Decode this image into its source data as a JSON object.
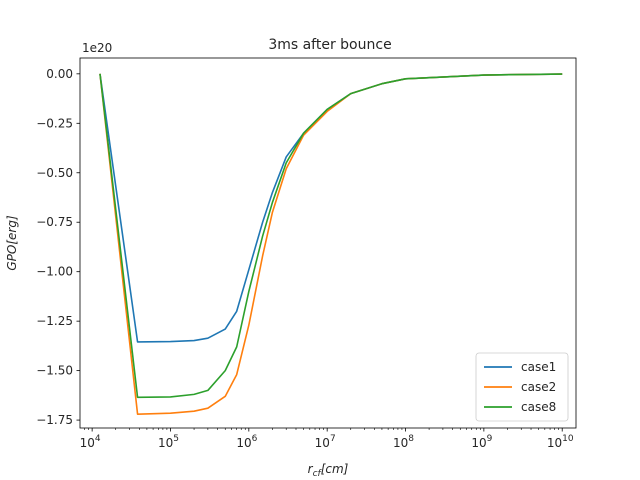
{
  "chart_data": {
    "type": "line",
    "title": "3ms after bounce",
    "xlabel": "r_cf[cm]",
    "ylabel": "GPO[erg]",
    "x_scale": "log",
    "y_offset_label": "1e20",
    "xlim": [
      7000,
      15000000000
    ],
    "ylim": [
      -1.79,
      0.08
    ],
    "x_ticks": [
      {
        "value": 10000,
        "base": "10",
        "exp": "4"
      },
      {
        "value": 100000,
        "base": "10",
        "exp": "5"
      },
      {
        "value": 1000000,
        "base": "10",
        "exp": "6"
      },
      {
        "value": 10000000,
        "base": "10",
        "exp": "7"
      },
      {
        "value": 100000000,
        "base": "10",
        "exp": "8"
      },
      {
        "value": 1000000000,
        "base": "10",
        "exp": "9"
      },
      {
        "value": 10000000000,
        "base": "10",
        "exp": "10"
      }
    ],
    "y_ticks": [
      {
        "value": 0.0,
        "label": "0.00"
      },
      {
        "value": -0.25,
        "label": "−0.25"
      },
      {
        "value": -0.5,
        "label": "−0.50"
      },
      {
        "value": -0.75,
        "label": "−0.75"
      },
      {
        "value": -1.0,
        "label": "−1.00"
      },
      {
        "value": -1.25,
        "label": "−1.25"
      },
      {
        "value": -1.5,
        "label": "−1.50"
      },
      {
        "value": -1.75,
        "label": "−1.75"
      }
    ],
    "legend_position": "lower-right",
    "grid": false,
    "series": [
      {
        "name": "case1",
        "color": "#1f77b4",
        "points": [
          [
            12600,
            0.0
          ],
          [
            38000,
            -1.355
          ],
          [
            100000,
            -1.353
          ],
          [
            200000,
            -1.348
          ],
          [
            300000,
            -1.336
          ],
          [
            500000,
            -1.29
          ],
          [
            700000,
            -1.2
          ],
          [
            1000000,
            -0.99
          ],
          [
            1500000,
            -0.75
          ],
          [
            2000000,
            -0.6
          ],
          [
            3000000,
            -0.42
          ],
          [
            5000000,
            -0.3
          ],
          [
            10000000,
            -0.18
          ],
          [
            20000000,
            -0.1
          ],
          [
            50000000,
            -0.05
          ],
          [
            100000000,
            -0.025
          ],
          [
            1000000000,
            -0.006
          ],
          [
            10000000000,
            -0.001
          ]
        ]
      },
      {
        "name": "case2",
        "color": "#ff7f0e",
        "points": [
          [
            12600,
            0.0
          ],
          [
            38000,
            -1.72
          ],
          [
            100000,
            -1.715
          ],
          [
            200000,
            -1.705
          ],
          [
            300000,
            -1.69
          ],
          [
            500000,
            -1.63
          ],
          [
            700000,
            -1.52
          ],
          [
            1000000,
            -1.27
          ],
          [
            1500000,
            -0.92
          ],
          [
            2000000,
            -0.7
          ],
          [
            3000000,
            -0.48
          ],
          [
            5000000,
            -0.31
          ],
          [
            10000000,
            -0.19
          ],
          [
            20000000,
            -0.1
          ],
          [
            50000000,
            -0.05
          ],
          [
            100000000,
            -0.025
          ],
          [
            1000000000,
            -0.006
          ],
          [
            10000000000,
            -0.001
          ]
        ]
      },
      {
        "name": "case8",
        "color": "#2ca02c",
        "points": [
          [
            12600,
            0.0
          ],
          [
            38000,
            -1.635
          ],
          [
            100000,
            -1.633
          ],
          [
            200000,
            -1.62
          ],
          [
            300000,
            -1.6
          ],
          [
            500000,
            -1.5
          ],
          [
            700000,
            -1.38
          ],
          [
            1000000,
            -1.1
          ],
          [
            1500000,
            -0.82
          ],
          [
            2000000,
            -0.65
          ],
          [
            3000000,
            -0.45
          ],
          [
            5000000,
            -0.3
          ],
          [
            10000000,
            -0.18
          ],
          [
            20000000,
            -0.1
          ],
          [
            50000000,
            -0.05
          ],
          [
            100000000,
            -0.025
          ],
          [
            1000000000,
            -0.006
          ],
          [
            10000000000,
            -0.001
          ]
        ]
      }
    ]
  }
}
